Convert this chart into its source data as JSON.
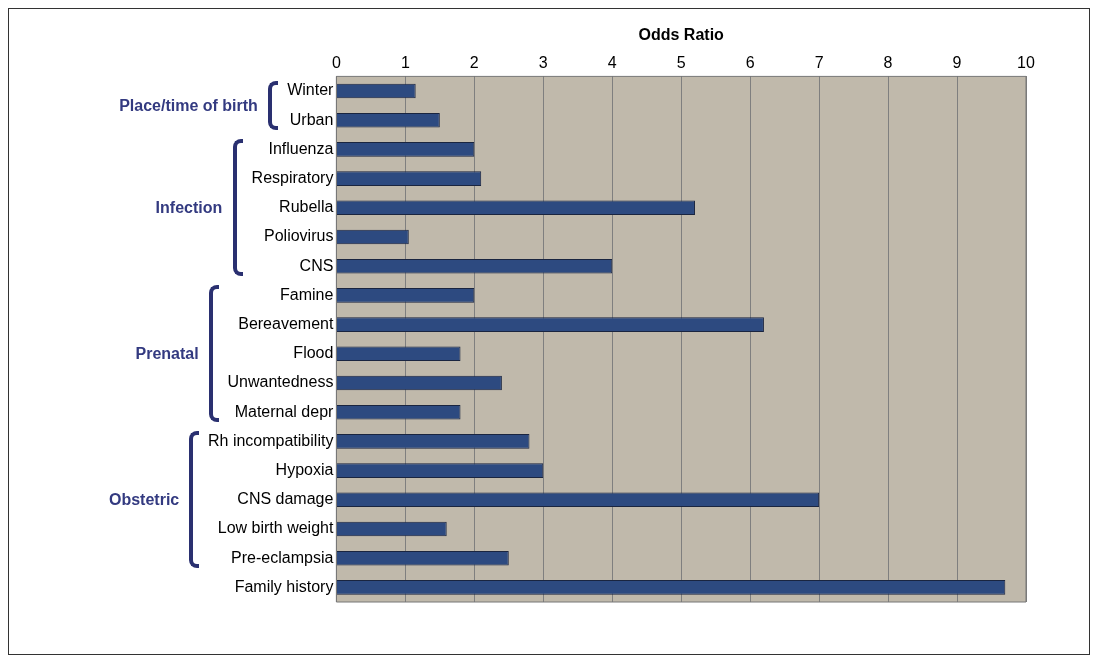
{
  "chart_data": {
    "type": "bar",
    "orientation": "horizontal",
    "title": "Odds Ratio",
    "categories": [
      "Winter",
      "Urban",
      "Influenza",
      "Respiratory",
      "Rubella",
      "Poliovirus",
      "CNS",
      "Famine",
      "Bereavement",
      "Flood",
      "Unwantedness",
      "Maternal depr",
      "Rh incompatibility",
      "Hypoxia",
      "CNS damage",
      "Low birth weight",
      "Pre-eclampsia",
      "Family history"
    ],
    "values": [
      1.15,
      1.5,
      2.0,
      2.1,
      5.2,
      1.05,
      4.0,
      2.0,
      6.2,
      1.8,
      2.4,
      1.8,
      2.8,
      3.0,
      7.0,
      1.6,
      2.5,
      9.7
    ],
    "color": "#2d4a80",
    "xlim": [
      0,
      10
    ],
    "xticks": [
      0,
      1,
      2,
      3,
      4,
      5,
      6,
      7,
      8,
      9,
      10
    ],
    "grid": "x",
    "legend": false,
    "annotations": [
      "Place/time of birth",
      "Infection",
      "Prenatal",
      "Obstetric"
    ]
  }
}
